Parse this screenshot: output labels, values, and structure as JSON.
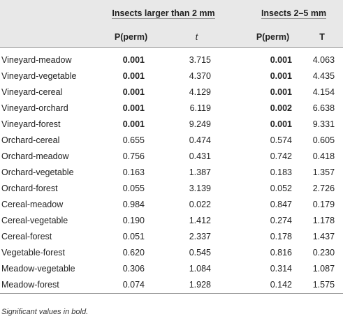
{
  "header": {
    "group1": "Insects larger than 2 mm",
    "group2": "Insects 2–5 mm",
    "g1_col1": "P(perm)",
    "g1_col2": "t",
    "g2_col1": "P(perm)",
    "g2_col2": "T"
  },
  "rows": [
    {
      "label": "Vineyard-meadow",
      "p1": "0.001",
      "t1": "3.715",
      "p2": "0.001",
      "t2": "4.063",
      "p1_bold": true,
      "p2_bold": true
    },
    {
      "label": "Vineyard-vegetable",
      "p1": "0.001",
      "t1": "4.370",
      "p2": "0.001",
      "t2": "4.435",
      "p1_bold": true,
      "p2_bold": true
    },
    {
      "label": "Vineyard-cereal",
      "p1": "0.001",
      "t1": "4.129",
      "p2": "0.001",
      "t2": "4.154",
      "p1_bold": true,
      "p2_bold": true
    },
    {
      "label": "Vineyard-orchard",
      "p1": "0.001",
      "t1": "6.119",
      "p2": "0.002",
      "t2": "6.638",
      "p1_bold": true,
      "p2_bold": true
    },
    {
      "label": "Vineyard-forest",
      "p1": "0.001",
      "t1": "9.249",
      "p2": "0.001",
      "t2": "9.331",
      "p1_bold": true,
      "p2_bold": true
    },
    {
      "label": "Orchard-cereal",
      "p1": "0.655",
      "t1": "0.474",
      "p2": "0.574",
      "t2": "0.605",
      "p1_bold": false,
      "p2_bold": false
    },
    {
      "label": "Orchard-meadow",
      "p1": "0.756",
      "t1": "0.431",
      "p2": "0.742",
      "t2": "0.418",
      "p1_bold": false,
      "p2_bold": false
    },
    {
      "label": "Orchard-vegetable",
      "p1": "0.163",
      "t1": "1.387",
      "p2": "0.183",
      "t2": "1.357",
      "p1_bold": false,
      "p2_bold": false
    },
    {
      "label": "Orchard-forest",
      "p1": "0.055",
      "t1": "3.139",
      "p2": "0.052",
      "t2": "2.726",
      "p1_bold": false,
      "p2_bold": false
    },
    {
      "label": "Cereal-meadow",
      "p1": "0.984",
      "t1": "0.022",
      "p2": "0.847",
      "t2": "0.179",
      "p1_bold": false,
      "p2_bold": false
    },
    {
      "label": "Cereal-vegetable",
      "p1": "0.190",
      "t1": "1.412",
      "p2": "0.274",
      "t2": "1.178",
      "p1_bold": false,
      "p2_bold": false
    },
    {
      "label": "Cereal-forest",
      "p1": "0.051",
      "t1": "2.337",
      "p2": "0.178",
      "t2": "1.437",
      "p1_bold": false,
      "p2_bold": false
    },
    {
      "label": "Vegetable-forest",
      "p1": "0.620",
      "t1": "0.545",
      "p2": "0.816",
      "t2": "0.230",
      "p1_bold": false,
      "p2_bold": false
    },
    {
      "label": "Meadow-vegetable",
      "p1": "0.306",
      "t1": "1.084",
      "p2": "0.314",
      "t2": "1.087",
      "p1_bold": false,
      "p2_bold": false
    },
    {
      "label": "Meadow-forest",
      "p1": "0.074",
      "t1": "1.928",
      "p2": "0.142",
      "t2": "1.575",
      "p1_bold": false,
      "p2_bold": false
    }
  ],
  "footnote": "Significant values in bold.",
  "colors": {
    "header_bg": "#e8e8e8",
    "rule": "#9a9a9a"
  }
}
